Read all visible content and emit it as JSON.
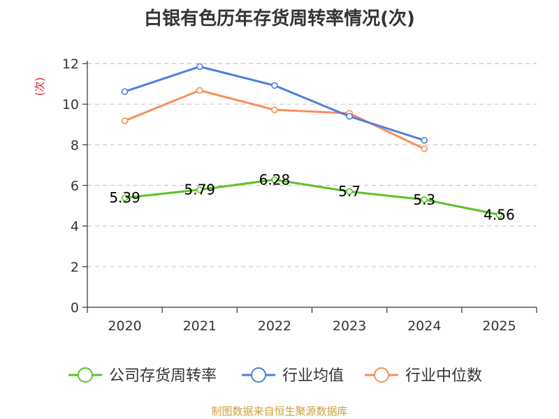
{
  "chart_data": {
    "type": "line",
    "title": "白银有色历年存货周转率情况(次)",
    "ylabel": "(次)",
    "xlabel": "",
    "categories": [
      "2020",
      "2021",
      "2022",
      "2023",
      "2024",
      "2025"
    ],
    "ylim": [
      0,
      12
    ],
    "yticks": [
      0,
      2,
      4,
      6,
      8,
      10,
      12
    ],
    "grid": "horizontal-dashed",
    "legend_position": "bottom",
    "series": [
      {
        "name": "公司存货周转率",
        "color": "#5cc22a",
        "values": [
          5.39,
          5.79,
          6.28,
          5.7,
          5.3,
          4.56
        ],
        "labels": [
          "5.39",
          "5.79",
          "6.28",
          "5.7",
          "5.3",
          "4.56"
        ]
      },
      {
        "name": "行业均值",
        "color": "#4e7fdc",
        "values": [
          10.62,
          11.85,
          10.92,
          9.4,
          8.22,
          null
        ]
      },
      {
        "name": "行业中位数",
        "color": "#f88d5b",
        "values": [
          9.18,
          10.68,
          9.72,
          9.55,
          7.8,
          null
        ]
      }
    ]
  },
  "source_note": "制图数据来自恒生聚源数据库"
}
